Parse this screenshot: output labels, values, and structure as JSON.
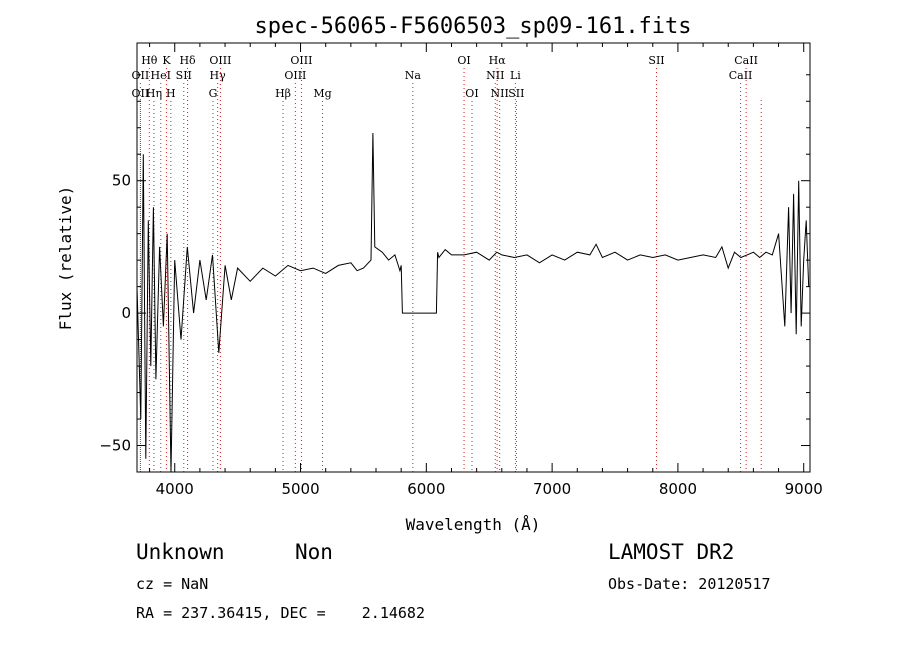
{
  "chart_data": {
    "type": "line",
    "title": "spec-56065-F5606503_sp09-161.fits",
    "xlabel": "Wavelength (Å)",
    "ylabel": "Flux (relative)",
    "xlim": [
      3700,
      9050
    ],
    "ylim": [
      -60,
      102
    ],
    "xticks": [
      4000,
      5000,
      6000,
      7000,
      8000,
      9000
    ],
    "yticks": [
      -50,
      0,
      50
    ],
    "grid": false,
    "colors": {
      "spectrum": "#000000",
      "line_markers": "#cc2222",
      "axes": "#000000"
    },
    "series": [
      {
        "values_note": "",
        "x": [
          3700,
          3730,
          3750,
          3770,
          3790,
          3810,
          3830,
          3850,
          3880,
          3910,
          3940,
          3970,
          4000,
          4050,
          4100,
          4150,
          4200,
          4250,
          4300,
          4350,
          4400,
          4450,
          4500,
          4600,
          4700,
          4800,
          4900,
          5000,
          5100,
          5200,
          5300,
          5400,
          5450,
          5500,
          5560,
          5575,
          5590,
          5650,
          5700,
          5750,
          5790,
          5800,
          5810,
          6080,
          6090,
          6100,
          6150,
          6200,
          6300,
          6400,
          6500,
          6560,
          6600,
          6700,
          6800,
          6900,
          7000,
          7100,
          7200,
          7300,
          7350,
          7400,
          7500,
          7600,
          7700,
          7800,
          7900,
          8000,
          8100,
          8200,
          8300,
          8350,
          8400,
          8450,
          8500,
          8550,
          8600,
          8650,
          8700,
          8750,
          8800,
          8850,
          8880,
          8900,
          8920,
          8940,
          8960,
          8980,
          9000,
          9020,
          9040
        ],
        "y": [
          10,
          -40,
          60,
          -55,
          35,
          -20,
          40,
          -25,
          25,
          -5,
          30,
          -60,
          20,
          -10,
          25,
          0,
          20,
          5,
          22,
          -15,
          18,
          5,
          17,
          12,
          17,
          14,
          18,
          16,
          17,
          15,
          18,
          19,
          16,
          17,
          20,
          68,
          25,
          23,
          20,
          22,
          16,
          18,
          0,
          0,
          23,
          21,
          24,
          22,
          22,
          23,
          20,
          23,
          22,
          21,
          22,
          19,
          22,
          20,
          23,
          22,
          26,
          21,
          23,
          20,
          22,
          21,
          22,
          20,
          21,
          22,
          21,
          25,
          17,
          23,
          21,
          22,
          23,
          21,
          23,
          22,
          30,
          -5,
          40,
          0,
          45,
          -8,
          50,
          -5,
          20,
          35,
          10
        ]
      }
    ],
    "line_markers": [
      {
        "label": "Hθ",
        "x": 3798,
        "row": 0
      },
      {
        "label": "K",
        "x": 3934,
        "row": 0
      },
      {
        "label": "Hδ",
        "x": 4102,
        "row": 0
      },
      {
        "label": "OIII",
        "x": 4363,
        "row": 0
      },
      {
        "label": "OIII",
        "x": 5007,
        "row": 0
      },
      {
        "label": "OI",
        "x": 6300,
        "row": 0
      },
      {
        "label": "Hα",
        "x": 6563,
        "row": 0
      },
      {
        "label": "SII",
        "x": 7830,
        "row": 0
      },
      {
        "label": "CaII",
        "x": 8542,
        "row": 0
      },
      {
        "label": "OII",
        "x": 3727,
        "row": 1
      },
      {
        "label": "HeI",
        "x": 3889,
        "row": 1
      },
      {
        "label": "SII",
        "x": 4072,
        "row": 1
      },
      {
        "label": "Hγ",
        "x": 4341,
        "row": 1
      },
      {
        "label": "OIII",
        "x": 4959,
        "row": 1
      },
      {
        "label": "Na",
        "x": 5893,
        "row": 1
      },
      {
        "label": "NII",
        "x": 6548,
        "row": 1
      },
      {
        "label": "Li",
        "x": 6708,
        "row": 1
      },
      {
        "label": "CaII",
        "x": 8498,
        "row": 1
      },
      {
        "label": "OII",
        "x": 3727,
        "row": 2
      },
      {
        "label": "Hη",
        "x": 3835,
        "row": 2
      },
      {
        "label": "H",
        "x": 3969,
        "row": 2
      },
      {
        "label": "G",
        "x": 4304,
        "row": 2
      },
      {
        "label": "Hβ",
        "x": 4861,
        "row": 2
      },
      {
        "label": "Mg",
        "x": 5175,
        "row": 2
      },
      {
        "label": "OI",
        "x": 6363,
        "row": 2
      },
      {
        "label": "NII",
        "x": 6583,
        "row": 2
      },
      {
        "label": "SII",
        "x": 6716,
        "row": 2
      },
      {
        "label": "CaII",
        "x": 8662,
        "row": -1
      }
    ]
  },
  "info": {
    "class": "Unknown",
    "subclass": "Non",
    "survey": "LAMOST DR2",
    "cz": "cz = NaN",
    "obsdate": "Obs-Date: 20120517",
    "radec": "RA = 237.36415, DEC =    2.14682"
  }
}
